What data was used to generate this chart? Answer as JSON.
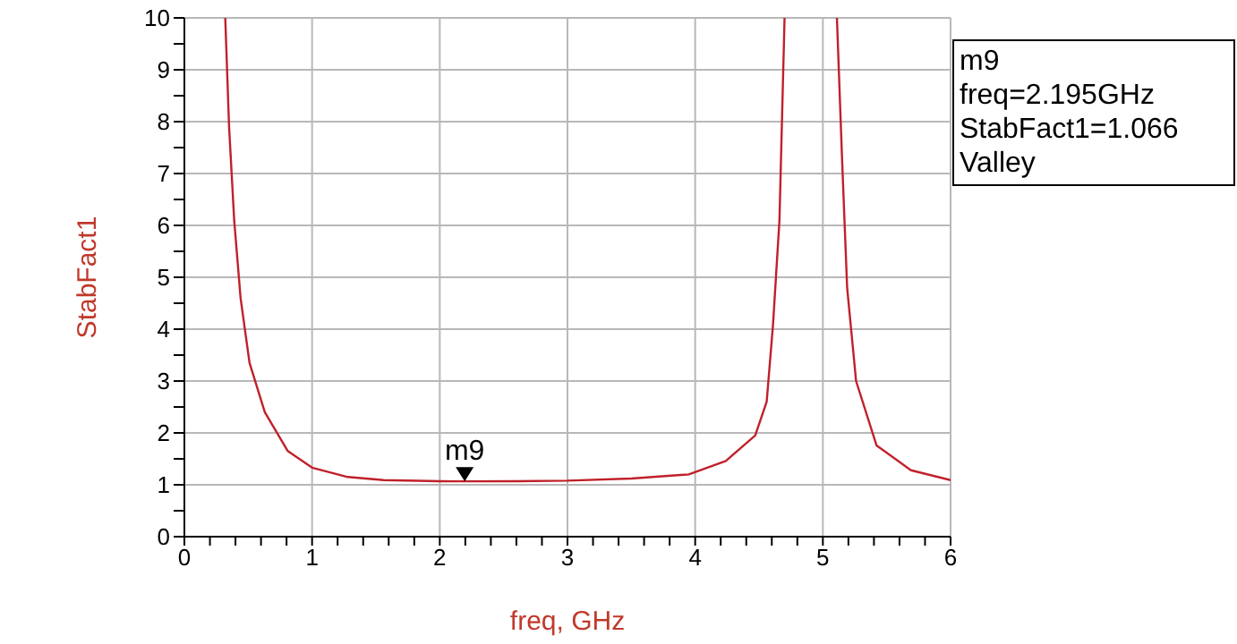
{
  "chart_data": {
    "type": "line",
    "xlabel": "freq, GHz",
    "ylabel": "StabFact1",
    "x": [
      0.32,
      0.35,
      0.39,
      0.44,
      0.51,
      0.63,
      0.81,
      1.0,
      1.28,
      1.56,
      2.0,
      2.195,
      2.6,
      3.0,
      3.5,
      3.95,
      4.24,
      4.47,
      4.56,
      4.61,
      4.66,
      4.7,
      4.9,
      5.11,
      5.15,
      5.19,
      5.26,
      5.42,
      5.69,
      6.0
    ],
    "series": [
      {
        "color": "#c0202a",
        "values": [
          10,
          7.9,
          6.1,
          4.6,
          3.35,
          2.4,
          1.65,
          1.33,
          1.15,
          1.09,
          1.07,
          1.066,
          1.07,
          1.08,
          1.12,
          1.2,
          1.46,
          1.95,
          2.6,
          4.1,
          6.1,
          10,
          null,
          10,
          7.3,
          4.8,
          3.0,
          1.76,
          1.28,
          1.09
        ]
      }
    ],
    "xlim": [
      0,
      6
    ],
    "xticks": [
      0,
      {
        "value": 0.2,
        "label": null
      },
      {
        "value": 0.4,
        "label": null
      },
      {
        "value": 0.6,
        "label": null
      },
      {
        "value": 0.8,
        "label": null
      },
      1,
      {
        "value": 1.2,
        "label": null
      },
      {
        "value": 1.4,
        "label": null
      },
      {
        "value": 1.6,
        "label": null
      },
      {
        "value": 1.8,
        "label": null
      },
      2,
      {
        "value": 2.2,
        "label": null
      },
      {
        "value": 2.4,
        "label": null
      },
      {
        "value": 2.6,
        "label": null
      },
      {
        "value": 2.8,
        "label": null
      },
      3,
      {
        "value": 3.2,
        "label": null
      },
      {
        "value": 3.4,
        "label": null
      },
      {
        "value": 3.6,
        "label": null
      },
      {
        "value": 3.8,
        "label": null
      },
      4,
      {
        "value": 4.2,
        "label": null
      },
      {
        "value": 4.4,
        "label": null
      },
      {
        "value": 4.6,
        "label": null
      },
      {
        "value": 4.8,
        "label": null
      },
      5,
      {
        "value": 5.2,
        "label": null
      },
      {
        "value": 5.4,
        "label": null
      },
      {
        "value": 5.6,
        "label": null
      },
      {
        "value": 5.8,
        "label": null
      },
      6
    ],
    "ylim": [
      0,
      10
    ],
    "yticks": [
      0,
      {
        "value": 0.5,
        "label": null
      },
      1,
      {
        "value": 1.5,
        "label": null
      },
      2,
      {
        "value": 2.5,
        "label": null
      },
      3,
      {
        "value": 3.5,
        "label": null
      },
      4,
      {
        "value": 4.5,
        "label": null
      },
      5,
      {
        "value": 5.5,
        "label": null
      },
      6,
      {
        "value": 6.5,
        "label": null
      },
      7,
      {
        "value": 7.5,
        "label": null
      },
      8,
      {
        "value": 8.5,
        "label": null
      },
      9,
      {
        "value": 9.5,
        "label": null
      },
      10
    ],
    "grid": true,
    "annotations": [
      {
        "text": "m9",
        "x": 2.195,
        "y": 1.066
      },
      "m9",
      "freq=2.195GHz",
      "StabFact1=1.066",
      "Valley"
    ]
  }
}
